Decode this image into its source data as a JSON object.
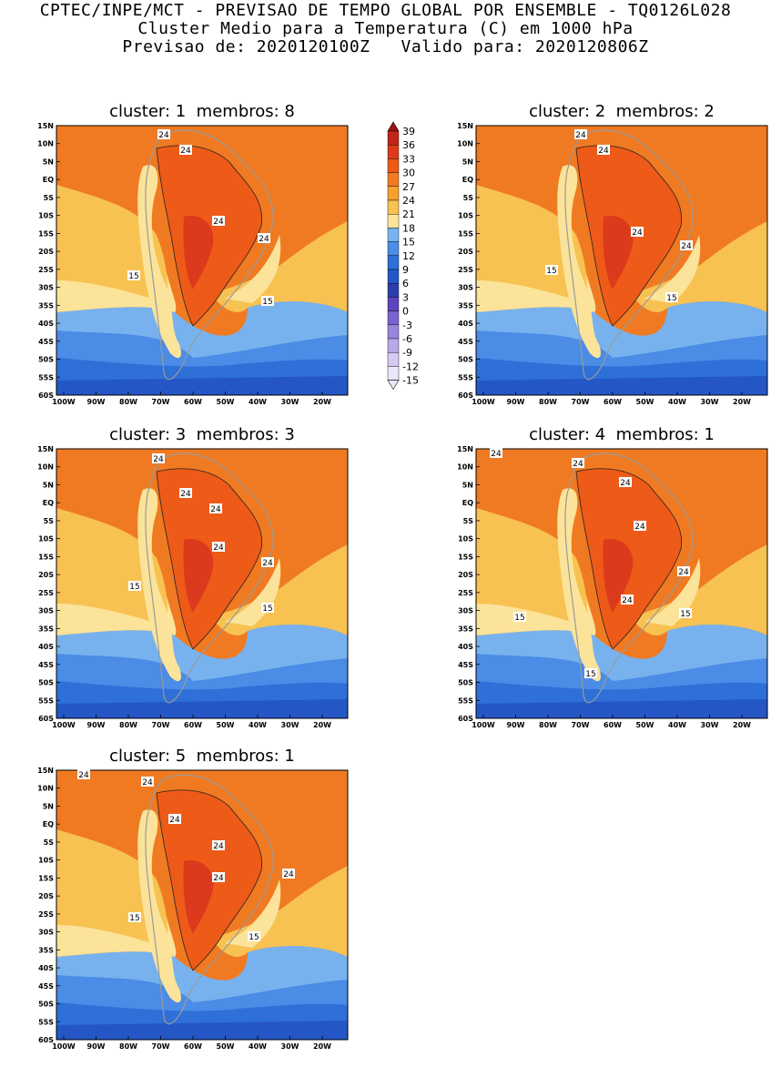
{
  "header": {
    "line1": "CPTEC/INPE/MCT - PREVISAO DE TEMPO GLOBAL POR ENSEMBLE - TQ0126L028",
    "line2": "Cluster Medio para a Temperatura (C) em 1000 hPa",
    "line3": "Previsao de: 2020120100Z   Valido para: 2020120806Z"
  },
  "panels": [
    {
      "title": "cluster: 1  membros: 8",
      "labels": [
        "24",
        "24",
        "24",
        "24",
        "15",
        "15"
      ]
    },
    {
      "title": "cluster: 2  membros: 2",
      "labels": [
        "24",
        "24",
        "24",
        "24",
        "15",
        "15"
      ]
    },
    {
      "title": "cluster: 3  membros: 3",
      "labels": [
        "24",
        "24",
        "24",
        "24",
        "24",
        "15",
        "15"
      ]
    },
    {
      "title": "cluster: 4  membros: 1",
      "labels": [
        "24",
        "24",
        "24",
        "24",
        "24",
        "24",
        "15",
        "15",
        "15"
      ]
    },
    {
      "title": "cluster: 5  membros: 1",
      "labels": [
        "24",
        "24",
        "24",
        "24",
        "24",
        "24",
        "15",
        "15"
      ]
    }
  ],
  "axes": {
    "y_ticks": [
      "15N",
      "10N",
      "5N",
      "EQ",
      "5S",
      "10S",
      "15S",
      "20S",
      "25S",
      "30S",
      "35S",
      "40S",
      "45S",
      "50S",
      "55S",
      "60S"
    ],
    "x_ticks": [
      "100W",
      "90W",
      "80W",
      "70W",
      "60W",
      "50W",
      "40W",
      "30W",
      "20W"
    ]
  },
  "colorbar": {
    "labels": [
      "39",
      "36",
      "33",
      "30",
      "27",
      "24",
      "21",
      "18",
      "15",
      "12",
      "9",
      "6",
      "3",
      "0",
      "-3",
      "-6",
      "-9",
      "-12",
      "-15"
    ],
    "colors": {
      "very_hot": "#a01010",
      "hot3": "#c0241c",
      "hot2": "#dc3a1c",
      "hot1": "#ee5a18",
      "orange": "#f07a22",
      "orange_lt": "#f6a030",
      "yellow_or": "#f8c252",
      "yellow": "#fbe39a",
      "blue_lt": "#78b2ee",
      "blue": "#4a8ce6",
      "blue_md": "#2e6fd8",
      "blue_dk": "#2456c6",
      "navy": "#2c3ea8",
      "purple": "#5e44c0",
      "purple_md": "#7a62d0",
      "purple_lt": "#9a84dc",
      "lav": "#b8a8e8",
      "lav_lt": "#d4caf2",
      "lav_xlt": "#ece6fa"
    }
  }
}
